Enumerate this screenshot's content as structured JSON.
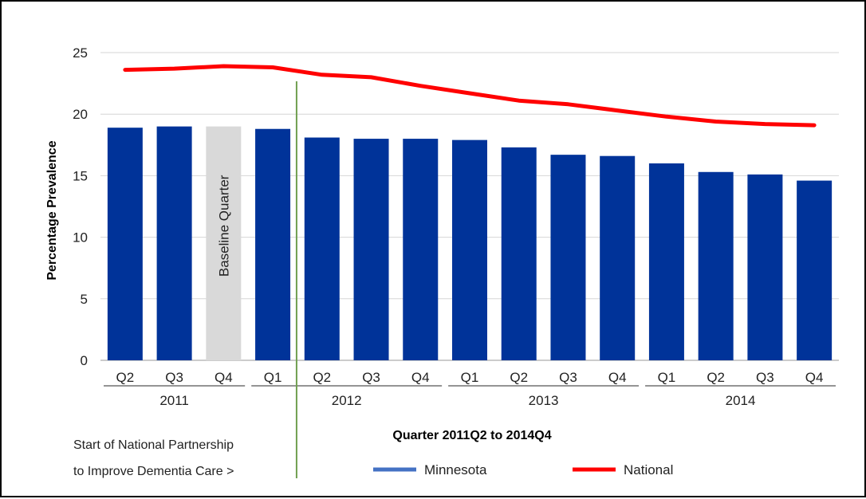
{
  "chart_data": {
    "type": "bar",
    "title": "",
    "xlabel": "Quarter 2011Q2 to 2014Q4",
    "ylabel": "Percentage Prevalence",
    "ylim": [
      0,
      25
    ],
    "yticks": [
      0,
      5,
      10,
      15,
      20,
      25
    ],
    "grid": true,
    "categories": [
      "Q2",
      "Q3",
      "Q4",
      "Q1",
      "Q2",
      "Q3",
      "Q4",
      "Q1",
      "Q2",
      "Q3",
      "Q4",
      "Q1",
      "Q2",
      "Q3",
      "Q4"
    ],
    "years": [
      {
        "label": "2011",
        "start": 0,
        "end": 2
      },
      {
        "label": "2012",
        "start": 3,
        "end": 6
      },
      {
        "label": "2013",
        "start": 7,
        "end": 10
      },
      {
        "label": "2014",
        "start": 11,
        "end": 14
      }
    ],
    "series": [
      {
        "name": "Minnesota",
        "type": "bar",
        "color": "#003399",
        "values": [
          18.9,
          19.0,
          19.0,
          18.8,
          18.1,
          18.0,
          18.0,
          17.9,
          17.3,
          16.7,
          16.6,
          16.0,
          15.3,
          15.1,
          14.6
        ]
      },
      {
        "name": "National",
        "type": "line",
        "color": "#ff0000",
        "values": [
          23.6,
          23.7,
          23.9,
          23.8,
          23.2,
          23.0,
          22.3,
          21.7,
          21.1,
          20.8,
          20.3,
          19.8,
          19.4,
          19.2,
          19.1
        ]
      }
    ],
    "highlight": {
      "index": 2,
      "color": "#d9d9d9",
      "label": "Baseline Quarter"
    },
    "marker_line": {
      "color": "#70a050",
      "note_line1": "Start of National Partnership",
      "note_line2": "to Improve Dementia Care >"
    },
    "legend": {
      "placement": "bottom",
      "minnesota_color": "#4472c4"
    }
  }
}
